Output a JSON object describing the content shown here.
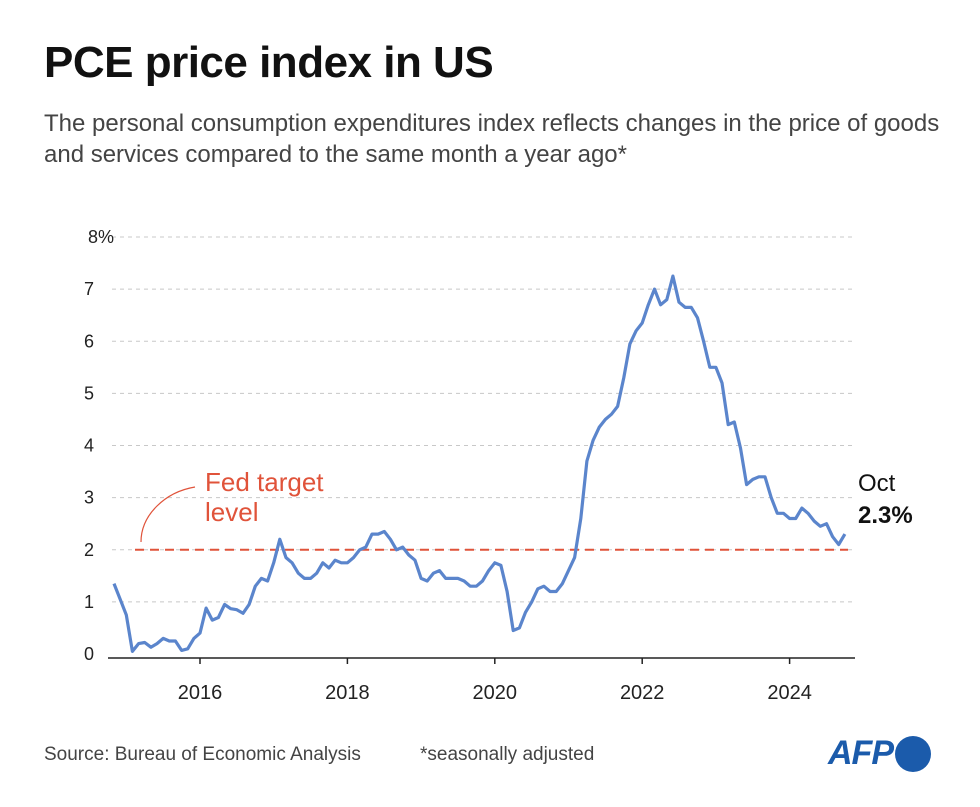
{
  "title": "PCE price index in US",
  "subtitle": "The personal consumption expenditures index reflects changes in the price of goods and services compared to the same month a year ago*",
  "footer": {
    "source": "Source: Bureau of Economic Analysis",
    "note": "*seasonally adjusted",
    "logo": "AFP"
  },
  "colors": {
    "line": "#5b85cc",
    "target": "#e0533a",
    "grid": "#c8c8c8",
    "logo": "#1b5bab"
  },
  "chart_data": {
    "type": "line",
    "ylim": [
      0,
      8
    ],
    "y_ticks": [
      "0",
      "1",
      "2",
      "3",
      "4",
      "5",
      "6",
      "7",
      "8%"
    ],
    "x_ticks": [
      "2016",
      "2018",
      "2020",
      "2022",
      "2024"
    ],
    "grid": "horizontal dashed",
    "reference_line": {
      "value": 2,
      "label_line1": "Fed target",
      "label_line2": "level"
    },
    "end_annotation": {
      "label": "Oct",
      "value": "2.3%"
    },
    "series": [
      {
        "x": [
          "2014-11",
          "2014-12",
          "2015-01",
          "2015-02",
          "2015-03",
          "2015-04",
          "2015-05",
          "2015-06",
          "2015-07",
          "2015-08",
          "2015-09",
          "2015-10",
          "2015-11",
          "2015-12",
          "2016-01",
          "2016-02",
          "2016-03",
          "2016-04",
          "2016-05",
          "2016-06",
          "2016-07",
          "2016-08",
          "2016-09",
          "2016-10",
          "2016-11",
          "2016-12",
          "2017-01",
          "2017-02",
          "2017-03",
          "2017-04",
          "2017-05",
          "2017-06",
          "2017-07",
          "2017-08",
          "2017-09",
          "2017-10",
          "2017-11",
          "2017-12",
          "2018-01",
          "2018-02",
          "2018-03",
          "2018-04",
          "2018-05",
          "2018-06",
          "2018-07",
          "2018-08",
          "2018-09",
          "2018-10",
          "2018-11",
          "2018-12",
          "2019-01",
          "2019-02",
          "2019-03",
          "2019-04",
          "2019-05",
          "2019-06",
          "2019-07",
          "2019-08",
          "2019-09",
          "2019-10",
          "2019-11",
          "2019-12",
          "2020-01",
          "2020-02",
          "2020-03",
          "2020-04",
          "2020-05",
          "2020-06",
          "2020-07",
          "2020-08",
          "2020-09",
          "2020-10",
          "2020-11",
          "2020-12",
          "2021-01",
          "2021-02",
          "2021-03",
          "2021-04",
          "2021-05",
          "2021-06",
          "2021-07",
          "2021-08",
          "2021-09",
          "2021-10",
          "2021-11",
          "2021-12",
          "2022-01",
          "2022-02",
          "2022-03",
          "2022-04",
          "2022-05",
          "2022-06",
          "2022-07",
          "2022-08",
          "2022-09",
          "2022-10",
          "2022-11",
          "2022-12",
          "2023-01",
          "2023-02",
          "2023-03",
          "2023-04",
          "2023-05",
          "2023-06",
          "2023-07",
          "2023-08",
          "2023-09",
          "2023-10",
          "2023-11",
          "2023-12",
          "2024-01",
          "2024-02",
          "2024-03",
          "2024-04",
          "2024-05",
          "2024-06",
          "2024-07",
          "2024-08",
          "2024-09",
          "2024-10"
        ],
        "y": [
          1.35,
          1.05,
          0.75,
          0.05,
          0.2,
          0.22,
          0.13,
          0.2,
          0.3,
          0.25,
          0.25,
          0.07,
          0.1,
          0.3,
          0.4,
          0.88,
          0.65,
          0.7,
          0.95,
          0.87,
          0.85,
          0.78,
          0.95,
          1.3,
          1.45,
          1.4,
          1.75,
          2.2,
          1.85,
          1.75,
          1.55,
          1.45,
          1.45,
          1.55,
          1.75,
          1.65,
          1.8,
          1.75,
          1.75,
          1.85,
          2.0,
          2.05,
          2.3,
          2.3,
          2.35,
          2.2,
          2.0,
          2.05,
          1.9,
          1.8,
          1.45,
          1.4,
          1.55,
          1.6,
          1.45,
          1.45,
          1.45,
          1.4,
          1.3,
          1.3,
          1.4,
          1.6,
          1.75,
          1.7,
          1.2,
          0.45,
          0.5,
          0.8,
          1.0,
          1.25,
          1.3,
          1.2,
          1.2,
          1.35,
          1.6,
          1.85,
          2.6,
          3.7,
          4.1,
          4.35,
          4.5,
          4.6,
          4.75,
          5.3,
          5.95,
          6.2,
          6.35,
          6.7,
          7.0,
          6.7,
          6.8,
          7.25,
          6.75,
          6.65,
          6.65,
          6.45,
          6.0,
          5.5,
          5.5,
          5.2,
          4.4,
          4.45,
          3.95,
          3.25,
          3.35,
          3.4,
          3.4,
          3.0,
          2.7,
          2.7,
          2.6,
          2.6,
          2.8,
          2.7,
          2.55,
          2.45,
          2.5,
          2.25,
          2.1,
          2.3
        ]
      }
    ]
  }
}
